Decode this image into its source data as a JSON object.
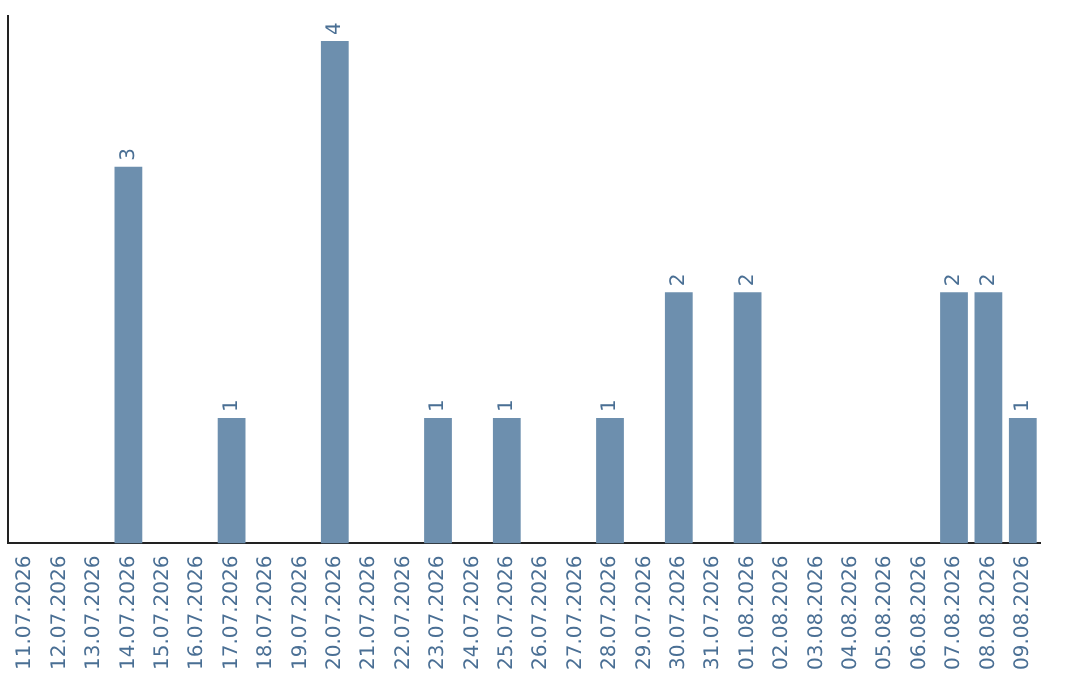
{
  "chart_data": {
    "type": "bar",
    "categories": [
      "11.07.2026",
      "12.07.2026",
      "13.07.2026",
      "14.07.2026",
      "15.07.2026",
      "16.07.2026",
      "17.07.2026",
      "18.07.2026",
      "19.07.2026",
      "20.07.2026",
      "21.07.2026",
      "22.07.2026",
      "23.07.2026",
      "24.07.2026",
      "25.07.2026",
      "26.07.2026",
      "27.07.2026",
      "28.07.2026",
      "29.07.2026",
      "30.07.2026",
      "31.07.2026",
      "01.08.2026",
      "02.08.2026",
      "03.08.2026",
      "04.08.2026",
      "05.08.2026",
      "06.08.2026",
      "07.08.2026",
      "08.08.2026",
      "09.08.2026"
    ],
    "values": [
      0,
      0,
      0,
      3,
      0,
      0,
      1,
      0,
      0,
      4,
      0,
      0,
      1,
      0,
      1,
      0,
      0,
      1,
      0,
      2,
      0,
      2,
      0,
      0,
      0,
      0,
      0,
      2,
      2,
      1
    ],
    "value_labels": [
      null,
      null,
      null,
      "3",
      null,
      null,
      "1",
      null,
      null,
      "4",
      null,
      null,
      "1",
      null,
      "1",
      null,
      null,
      "1",
      null,
      "2",
      null,
      "2",
      null,
      null,
      null,
      null,
      null,
      "2",
      "2",
      "1"
    ],
    "color": "#6d8fae",
    "ylim": [
      0,
      4.2
    ],
    "tick_labels": "x",
    "grid": false,
    "legend": false
  }
}
